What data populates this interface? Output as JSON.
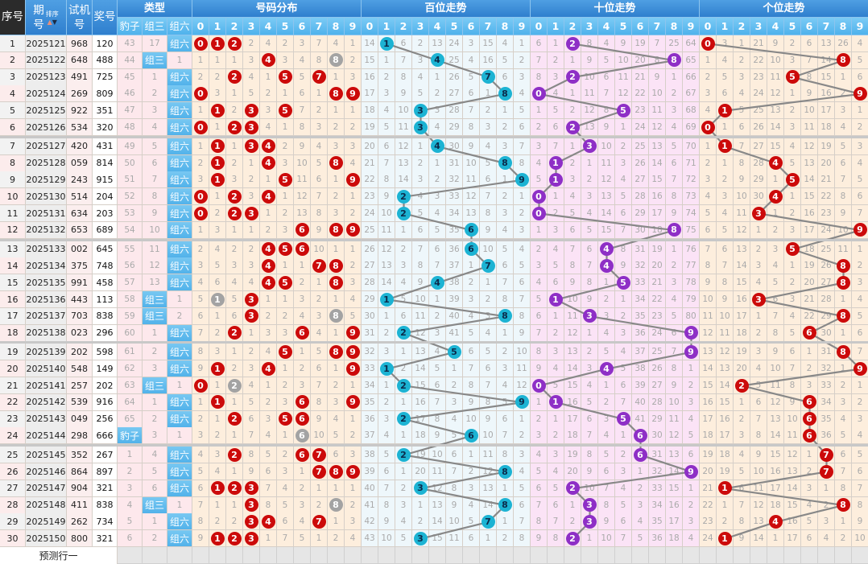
{
  "header": {
    "seq": "序号",
    "issue_top": "期",
    "issue_bottom": "号",
    "sort": "排序",
    "test_top": "试机",
    "test_bottom": "号",
    "win": "奖号",
    "type_group": "类型",
    "types": [
      "豹子",
      "组三",
      "组六"
    ],
    "dist": "号码分布",
    "hundreds": "百位走势",
    "tens": "十位走势",
    "units": "个位走势",
    "digits": [
      "0",
      "1",
      "2",
      "3",
      "4",
      "5",
      "6",
      "7",
      "8",
      "9"
    ]
  },
  "rows": [
    {
      "seq": "1",
      "issue": "2025121",
      "test": "968",
      "win": "120"
    },
    {
      "seq": "2",
      "issue": "2025122",
      "test": "648",
      "win": "488"
    },
    {
      "seq": "3",
      "issue": "2025123",
      "test": "491",
      "win": "725"
    },
    {
      "seq": "4",
      "issue": "2025124",
      "test": "269",
      "win": "809"
    },
    {
      "seq": "5",
      "issue": "2025125",
      "test": "922",
      "win": "351"
    },
    {
      "seq": "6",
      "issue": "2025126",
      "test": "534",
      "win": "320"
    },
    {
      "seq": "7",
      "issue": "2025127",
      "test": "420",
      "win": "431"
    },
    {
      "seq": "8",
      "issue": "2025128",
      "test": "059",
      "win": "814"
    },
    {
      "seq": "9",
      "issue": "2025129",
      "test": "243",
      "win": "915"
    },
    {
      "seq": "10",
      "issue": "2025130",
      "test": "514",
      "win": "204"
    },
    {
      "seq": "11",
      "issue": "2025131",
      "test": "634",
      "win": "203"
    },
    {
      "seq": "12",
      "issue": "2025132",
      "test": "653",
      "win": "689"
    },
    {
      "seq": "13",
      "issue": "2025133",
      "test": "002",
      "win": "645"
    },
    {
      "seq": "14",
      "issue": "2025134",
      "test": "375",
      "win": "748"
    },
    {
      "seq": "15",
      "issue": "2025135",
      "test": "991",
      "win": "458"
    },
    {
      "seq": "16",
      "issue": "2025136",
      "test": "443",
      "win": "113"
    },
    {
      "seq": "17",
      "issue": "2025137",
      "test": "703",
      "win": "838"
    },
    {
      "seq": "18",
      "issue": "2025138",
      "test": "023",
      "win": "296"
    },
    {
      "seq": "19",
      "issue": "2025139",
      "test": "202",
      "win": "598"
    },
    {
      "seq": "20",
      "issue": "2025140",
      "test": "548",
      "win": "149"
    },
    {
      "seq": "21",
      "issue": "2025141",
      "test": "257",
      "win": "202"
    },
    {
      "seq": "22",
      "issue": "2025142",
      "test": "539",
      "win": "916"
    },
    {
      "seq": "23",
      "issue": "2025143",
      "test": "049",
      "win": "256"
    },
    {
      "seq": "24",
      "issue": "2025144",
      "test": "298",
      "win": "666"
    },
    {
      "seq": "25",
      "issue": "2025145",
      "test": "352",
      "win": "267"
    },
    {
      "seq": "26",
      "issue": "2025146",
      "test": "864",
      "win": "897"
    },
    {
      "seq": "27",
      "issue": "2025147",
      "test": "904",
      "win": "321"
    },
    {
      "seq": "28",
      "issue": "2025148",
      "test": "411",
      "win": "838"
    },
    {
      "seq": "29",
      "issue": "2025149",
      "test": "262",
      "win": "734"
    },
    {
      "seq": "30",
      "issue": "2025150",
      "test": "800",
      "win": "321"
    }
  ],
  "type_columns": [
    [
      43,
      44,
      45,
      46,
      47,
      48,
      49,
      50,
      51,
      52,
      53,
      54,
      55,
      56,
      57,
      58,
      59,
      60,
      61,
      62,
      63,
      64,
      65,
      "豹子",
      1,
      2,
      3,
      4,
      5,
      6
    ],
    [
      17,
      "组三",
      1,
      2,
      3,
      4,
      5,
      6,
      7,
      8,
      9,
      10,
      11,
      12,
      13,
      "组三",
      "组三",
      1,
      2,
      3,
      "组三",
      1,
      2,
      3,
      4,
      5,
      6,
      "组三",
      1,
      2
    ],
    [
      "组六",
      1,
      "组六",
      "组六",
      "组六",
      "组六",
      "组六",
      "组六",
      "组六",
      "组六",
      "组六",
      "组六",
      "组六",
      "组六",
      "组六",
      1,
      2,
      "组六",
      "组六",
      "组六",
      1,
      "组六",
      "组六",
      1,
      "组六",
      "组六",
      "组六",
      1,
      "组六",
      "组六"
    ]
  ],
  "distribution_columns": [
    [
      "0",
      1,
      2,
      "0",
      1,
      "0",
      1,
      2,
      3,
      "0",
      "0",
      1,
      2,
      3,
      4,
      5,
      6,
      7,
      8,
      9,
      "0",
      1,
      2,
      3,
      4,
      5,
      6,
      7,
      8,
      9
    ],
    [
      "1",
      1,
      2,
      3,
      "1",
      1,
      "1",
      "1",
      "1",
      1,
      2,
      3,
      4,
      5,
      6,
      "1",
      1,
      2,
      3,
      "1",
      1,
      "1",
      1,
      2,
      3,
      4,
      "1",
      1,
      2,
      "1"
    ],
    [
      "2",
      1,
      "2",
      1,
      2,
      "2",
      1,
      2,
      3,
      "2",
      "2",
      1,
      2,
      3,
      4,
      5,
      6,
      "2",
      1,
      2,
      "2",
      1,
      "2",
      1,
      "2",
      1,
      "2",
      1,
      2,
      "2"
    ],
    [
      2,
      3,
      4,
      5,
      "3",
      "3",
      "3",
      1,
      2,
      3,
      "3",
      1,
      2,
      3,
      4,
      "3",
      "3",
      1,
      2,
      3,
      4,
      5,
      6,
      7,
      8,
      9,
      "3",
      "3",
      "3",
      "3"
    ],
    [
      4,
      "4",
      1,
      2,
      3,
      4,
      "4",
      "4",
      1,
      "4",
      1,
      2,
      "4",
      "4",
      "4",
      1,
      2,
      3,
      4,
      "4",
      1,
      2,
      3,
      4,
      5,
      6,
      7,
      8,
      "4",
      1
    ],
    [
      2,
      3,
      "5",
      1,
      "5",
      1,
      2,
      3,
      "5",
      1,
      2,
      3,
      "5",
      1,
      "5",
      1,
      2,
      3,
      "5",
      1,
      2,
      3,
      "5",
      1,
      2,
      3,
      4,
      5,
      6,
      7
    ],
    [
      3,
      4,
      5,
      6,
      7,
      8,
      9,
      10,
      11,
      12,
      13,
      "6",
      "6",
      1,
      2,
      3,
      4,
      "6",
      1,
      2,
      3,
      "6",
      "6",
      "6",
      "6",
      1,
      2,
      3,
      4,
      5
    ],
    [
      7,
      8,
      "7",
      1,
      2,
      3,
      4,
      5,
      6,
      7,
      8,
      9,
      10,
      "7",
      1,
      2,
      3,
      4,
      5,
      6,
      7,
      8,
      9,
      10,
      "7",
      "7",
      1,
      2,
      "7",
      1
    ],
    [
      4,
      "8",
      1,
      "8",
      1,
      2,
      3,
      "8",
      1,
      2,
      3,
      "8",
      1,
      "8",
      "8",
      1,
      "8",
      1,
      "8",
      1,
      2,
      3,
      4,
      5,
      6,
      "8",
      1,
      "8",
      1,
      2
    ],
    [
      1,
      2,
      3,
      "9",
      1,
      2,
      3,
      4,
      "9",
      1,
      2,
      "9",
      1,
      2,
      3,
      4,
      5,
      "9",
      "9",
      "9",
      1,
      "9",
      1,
      2,
      3,
      "9",
      1,
      2,
      3,
      4
    ]
  ],
  "hundreds_columns": [
    [
      14,
      15,
      16,
      17,
      18,
      19,
      20,
      21,
      22,
      23,
      24,
      25,
      26,
      27,
      28,
      29,
      30,
      31,
      32,
      33,
      34,
      35,
      36,
      37,
      38,
      39,
      40,
      41,
      42,
      43
    ],
    [
      "1",
      1,
      2,
      3,
      4,
      5,
      6,
      7,
      8,
      9,
      10,
      11,
      12,
      13,
      14,
      "1",
      1,
      2,
      3,
      "1",
      1,
      2,
      3,
      4,
      5,
      6,
      7,
      8,
      9,
      10
    ],
    [
      6,
      7,
      8,
      9,
      10,
      11,
      12,
      13,
      14,
      "2",
      "2",
      1,
      2,
      3,
      4,
      5,
      6,
      "2",
      1,
      2,
      "2",
      1,
      "2",
      1,
      "2",
      1,
      2,
      3,
      4,
      5
    ],
    [
      2,
      3,
      4,
      5,
      "3",
      "3",
      1,
      2,
      3,
      4,
      5,
      6,
      7,
      8,
      9,
      10,
      11,
      12,
      13,
      14,
      15,
      16,
      17,
      18,
      19,
      20,
      "3",
      1,
      2,
      "3"
    ],
    [
      13,
      "4",
      1,
      2,
      3,
      4,
      "4",
      1,
      2,
      3,
      4,
      5,
      6,
      7,
      "4",
      1,
      2,
      3,
      4,
      5,
      6,
      7,
      8,
      9,
      10,
      11,
      12,
      13,
      14,
      15
    ],
    [
      24,
      25,
      26,
      27,
      28,
      29,
      30,
      31,
      32,
      33,
      34,
      35,
      36,
      37,
      38,
      39,
      40,
      41,
      "5",
      1,
      2,
      3,
      4,
      5,
      6,
      7,
      8,
      9,
      10,
      11
    ],
    [
      3,
      4,
      5,
      6,
      7,
      8,
      9,
      10,
      11,
      12,
      13,
      "6",
      "6",
      1,
      2,
      3,
      4,
      5,
      6,
      7,
      8,
      9,
      10,
      "6",
      1,
      2,
      3,
      4,
      5,
      6
    ],
    [
      15,
      16,
      "7",
      1,
      2,
      3,
      4,
      5,
      6,
      7,
      8,
      9,
      10,
      "7",
      1,
      2,
      3,
      4,
      5,
      6,
      7,
      8,
      9,
      10,
      11,
      12,
      13,
      14,
      "7",
      1
    ],
    [
      4,
      5,
      6,
      "8",
      1,
      2,
      3,
      "8",
      1,
      2,
      3,
      4,
      5,
      6,
      7,
      8,
      "8",
      1,
      2,
      3,
      4,
      5,
      6,
      7,
      8,
      "8",
      1,
      "8",
      1,
      2
    ],
    [
      1,
      2,
      3,
      4,
      5,
      6,
      7,
      8,
      "9",
      1,
      2,
      3,
      4,
      5,
      6,
      7,
      8,
      9,
      10,
      11,
      12,
      "9",
      1,
      2,
      3,
      4,
      5,
      6,
      7,
      8
    ]
  ],
  "tens_columns": [
    [
      6,
      7,
      8,
      "0",
      1,
      2,
      3,
      4,
      5,
      "0",
      "0",
      1,
      2,
      3,
      4,
      5,
      6,
      7,
      8,
      9,
      "0",
      1,
      2,
      3,
      4,
      5,
      6,
      7,
      8,
      9
    ],
    [
      1,
      2,
      3,
      4,
      5,
      6,
      7,
      "1",
      "1",
      1,
      2,
      3,
      4,
      5,
      6,
      "1",
      1,
      2,
      3,
      4,
      5,
      "1",
      1,
      2,
      3,
      4,
      5,
      6,
      7,
      8
    ],
    [
      "2",
      1,
      "2",
      1,
      2,
      "2",
      1,
      2,
      3,
      4,
      5,
      6,
      7,
      8,
      9,
      10,
      11,
      12,
      13,
      14,
      15,
      16,
      17,
      18,
      19,
      20,
      "2",
      1,
      2,
      "2"
    ],
    [
      8,
      9,
      10,
      11,
      12,
      13,
      "3",
      1,
      2,
      3,
      4,
      5,
      6,
      7,
      8,
      9,
      "3",
      1,
      2,
      3,
      4,
      5,
      6,
      7,
      8,
      9,
      10,
      "3",
      "3",
      1
    ],
    [
      4,
      5,
      6,
      7,
      8,
      9,
      10,
      11,
      12,
      13,
      14,
      15,
      "4",
      "4",
      1,
      2,
      3,
      4,
      5,
      "4",
      1,
      2,
      3,
      4,
      5,
      6,
      7,
      8,
      9,
      10
    ],
    [
      9,
      10,
      11,
      12,
      "5",
      1,
      2,
      3,
      4,
      5,
      6,
      7,
      8,
      9,
      "5",
      1,
      2,
      3,
      4,
      5,
      6,
      7,
      "5",
      1,
      2,
      3,
      4,
      5,
      6,
      7
    ],
    [
      19,
      20,
      21,
      22,
      23,
      24,
      25,
      26,
      27,
      28,
      29,
      30,
      31,
      32,
      33,
      34,
      35,
      36,
      37,
      38,
      39,
      40,
      41,
      "6",
      "6",
      1,
      2,
      3,
      4,
      5
    ],
    [
      7,
      8,
      9,
      10,
      11,
      12,
      13,
      14,
      15,
      16,
      17,
      18,
      19,
      20,
      21,
      22,
      23,
      24,
      25,
      26,
      27,
      28,
      29,
      30,
      31,
      32,
      33,
      34,
      35,
      36
    ],
    [
      25,
      "8",
      1,
      2,
      3,
      4,
      5,
      6,
      7,
      8,
      9,
      "8",
      1,
      2,
      3,
      4,
      5,
      6,
      7,
      8,
      9,
      10,
      11,
      12,
      13,
      14,
      15,
      16,
      17,
      18
    ],
    [
      64,
      65,
      66,
      67,
      68,
      69,
      70,
      71,
      72,
      73,
      74,
      75,
      76,
      77,
      78,
      79,
      80,
      "9",
      "9",
      1,
      2,
      3,
      4,
      5,
      6,
      "9",
      1,
      2,
      3,
      4
    ]
  ],
  "units_columns": [
    [
      "0",
      1,
      2,
      3,
      4,
      "0",
      1,
      2,
      3,
      4,
      5,
      6,
      7,
      8,
      9,
      10,
      11,
      12,
      13,
      14,
      15,
      16,
      17,
      18,
      19,
      20,
      21,
      22,
      23,
      24
    ],
    [
      3,
      4,
      5,
      6,
      "1",
      1,
      "1",
      1,
      2,
      3,
      4,
      5,
      6,
      7,
      8,
      9,
      10,
      11,
      12,
      13,
      14,
      15,
      16,
      17,
      18,
      19,
      "1",
      1,
      2,
      "1"
    ],
    [
      1,
      2,
      3,
      4,
      5,
      6,
      7,
      8,
      9,
      10,
      11,
      12,
      13,
      14,
      15,
      16,
      17,
      18,
      19,
      20,
      "2",
      1,
      2,
      3,
      4,
      5,
      6,
      7,
      8,
      9
    ],
    [
      21,
      22,
      23,
      24,
      25,
      26,
      27,
      28,
      29,
      30,
      "3",
      1,
      2,
      3,
      4,
      "3",
      1,
      2,
      3,
      4,
      5,
      6,
      7,
      8,
      9,
      10,
      11,
      12,
      13,
      14
    ],
    [
      9,
      10,
      11,
      12,
      13,
      14,
      15,
      "4",
      1,
      "4",
      1,
      2,
      3,
      4,
      5,
      6,
      7,
      8,
      9,
      10,
      11,
      12,
      13,
      14,
      15,
      16,
      17,
      18,
      "4",
      1
    ],
    [
      2,
      3,
      "5",
      1,
      2,
      3,
      4,
      5,
      "5",
      1,
      2,
      3,
      "5",
      1,
      2,
      3,
      4,
      5,
      6,
      7,
      8,
      9,
      10,
      11,
      12,
      13,
      14,
      15,
      16,
      17
    ],
    [
      6,
      7,
      8,
      9,
      10,
      11,
      12,
      13,
      14,
      15,
      16,
      17,
      18,
      19,
      20,
      21,
      22,
      "6",
      1,
      2,
      3,
      "6",
      "6",
      "6",
      1,
      2,
      3,
      4,
      5,
      6
    ],
    [
      13,
      14,
      15,
      16,
      17,
      18,
      19,
      20,
      21,
      22,
      23,
      24,
      25,
      26,
      27,
      28,
      29,
      30,
      31,
      32,
      33,
      34,
      35,
      36,
      "7",
      "7",
      1,
      2,
      3,
      4
    ],
    [
      26,
      "8",
      1,
      2,
      3,
      4,
      5,
      6,
      7,
      8,
      9,
      10,
      11,
      "8",
      "8",
      1,
      "8",
      1,
      "8",
      1,
      2,
      3,
      4,
      5,
      6,
      7,
      8,
      "8",
      1,
      2
    ],
    [
      4,
      5,
      6,
      "9",
      1,
      2,
      3,
      4,
      5,
      6,
      7,
      "9",
      1,
      2,
      3,
      4,
      5,
      6,
      7,
      "9",
      1,
      2,
      3,
      4,
      5,
      6,
      7,
      8,
      9,
      10
    ]
  ],
  "footer": {
    "label": "预测行一"
  },
  "colors": {
    "header_blue": "#2f7fce",
    "subheader_blue": "#4fb2ec",
    "dist_ball": "#cc0a0a",
    "dup_ball": "#a3a3a3",
    "hundreds_ball": "#1cb3d3",
    "tens_ball": "#8e2fc6",
    "units_ball": "#cc0a0a",
    "trend_line": "#888888"
  }
}
